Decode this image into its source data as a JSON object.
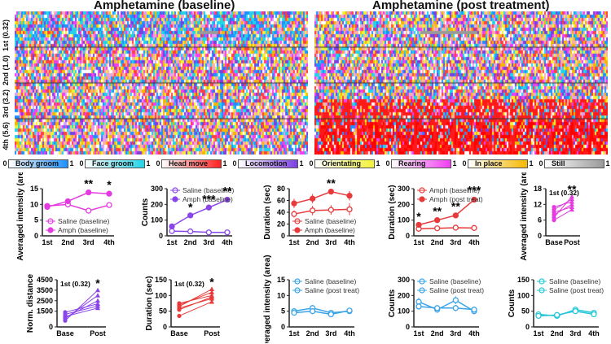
{
  "titles": {
    "left": "Amphetamine (baseline)",
    "right": "Amphetamine (post treatment)"
  },
  "row_labels": [
    "1st (0.32)",
    "2nd (1.0)",
    "3rd (3.2)",
    "4th (5.6)"
  ],
  "legend": {
    "min": "0",
    "max": "1",
    "items": [
      {
        "label": "Body groom",
        "color": "#1e90ff"
      },
      {
        "label": "Face groom",
        "color": "#22d4e8"
      },
      {
        "label": "Head move",
        "color": "#ff2020"
      },
      {
        "label": "Locomotion",
        "color": "#7b3fe0"
      },
      {
        "label": "Orientating",
        "color": "#f2f23a"
      },
      {
        "label": "Rearing",
        "color": "#f03ef0"
      },
      {
        "label": "In place",
        "color": "#f5b800"
      },
      {
        "label": "Still",
        "color": "#9a9a9a"
      }
    ]
  },
  "chart_data": [
    {
      "type": "line",
      "ylabel": "Averaged intensity (area)",
      "categories": [
        "1st",
        "2nd",
        "3rd",
        "4th"
      ],
      "ylim": [
        0,
        15
      ],
      "yticks": [
        "0",
        "5",
        "10",
        "15"
      ],
      "legend": "bottom",
      "color": "#e33be0",
      "series": [
        {
          "name": "Saline (baseline)",
          "values": [
            9.5,
            10,
            8,
            9.8
          ],
          "err": [
            0.4,
            0.4,
            0.4,
            0.4
          ],
          "open": true
        },
        {
          "name": "Amph (baseline)",
          "values": [
            9.2,
            11,
            13.8,
            13.4
          ],
          "err": [
            0.6,
            0.5,
            0.5,
            0.6
          ],
          "open": false
        }
      ],
      "stars": [
        {
          "x": 2,
          "text": "**"
        },
        {
          "x": 3,
          "text": "*"
        }
      ]
    },
    {
      "type": "line",
      "ylabel": "Counts",
      "categories": [
        "1st",
        "2nd",
        "3rd",
        "4th"
      ],
      "ylim": [
        0,
        300
      ],
      "yticks": [
        "0",
        "100",
        "200",
        "300"
      ],
      "legend": "top",
      "color": "#8a45e8",
      "series": [
        {
          "name": "Saline (baseline)",
          "values": [
            30,
            28,
            22,
            22
          ],
          "err": [
            3,
            3,
            3,
            3
          ],
          "open": true
        },
        {
          "name": "Amph (baseline)",
          "values": [
            60,
            130,
            180,
            230
          ],
          "err": [
            6,
            8,
            8,
            10
          ],
          "open": false
        }
      ],
      "stars": [
        {
          "x": 1,
          "text": "*"
        },
        {
          "x": 2,
          "text": "***"
        },
        {
          "x": 3,
          "text": "**"
        }
      ]
    },
    {
      "type": "line",
      "ylabel": "Duration (sec)",
      "categories": [
        "1st",
        "2nd",
        "3rd",
        "4th"
      ],
      "ylim": [
        0,
        80
      ],
      "yticks": [
        "0",
        "20",
        "40",
        "60",
        "80"
      ],
      "legend": "bottom",
      "color": "#e83a3a",
      "series": [
        {
          "name": "Saline (baseline)",
          "values": [
            37,
            43,
            44,
            45
          ],
          "err": [
            6,
            8,
            8,
            10
          ],
          "open": true
        },
        {
          "name": "Amph (baseline)",
          "values": [
            55,
            63,
            75,
            68
          ],
          "err": [
            8,
            8,
            5,
            8
          ],
          "open": false
        }
      ],
      "stars": [
        {
          "x": 2,
          "text": "**"
        }
      ]
    },
    {
      "type": "line",
      "ylabel": "Duration (sec)",
      "categories": [
        "1st",
        "2nd",
        "3rd",
        "4th"
      ],
      "ylim": [
        0,
        300
      ],
      "yticks": [
        "0",
        "100",
        "200",
        "300"
      ],
      "legend": "top",
      "color": "#e83a3a",
      "series": [
        {
          "name": "Amph (baseline)",
          "values": [
            45,
            48,
            52,
            50
          ],
          "err": [
            4,
            4,
            4,
            4
          ],
          "open": true
        },
        {
          "name": "Amph (post treat)",
          "values": [
            70,
            100,
            130,
            230
          ],
          "err": [
            8,
            10,
            12,
            15
          ],
          "open": false
        }
      ],
      "stars": [
        {
          "x": 0,
          "text": "*"
        },
        {
          "x": 1,
          "text": "**"
        },
        {
          "x": 2,
          "text": "**"
        },
        {
          "x": 3,
          "text": "***"
        }
      ]
    },
    {
      "type": "scatter",
      "ylabel": "Averaged intensity (area)",
      "categories": [
        "Base",
        "Post"
      ],
      "ylim": [
        0,
        18
      ],
      "yticks": [
        "0",
        "6",
        "12",
        "18"
      ],
      "label": "1st (0.32)",
      "color": "#e33be0",
      "pairs": [
        [
          6,
          10
        ],
        [
          8,
          12
        ],
        [
          10,
          14
        ],
        [
          11,
          13
        ],
        [
          7,
          15
        ],
        [
          9,
          11
        ]
      ],
      "stars": [
        {
          "x": 1,
          "text": "**"
        }
      ]
    },
    {
      "type": "scatter",
      "ylabel": "Norm. distance",
      "categories": [
        "Base",
        "Post"
      ],
      "ylim": [
        0,
        4500
      ],
      "yticks": [
        "0",
        "1500",
        "2500",
        "3500",
        "4500"
      ],
      "label": "1st (0.32)",
      "color": "#8a45e8",
      "pairs": [
        [
          900,
          2500
        ],
        [
          1200,
          2000
        ],
        [
          600,
          3500
        ],
        [
          1000,
          1800
        ],
        [
          1400,
          2200
        ],
        [
          800,
          3000
        ]
      ],
      "stars": [
        {
          "x": 1,
          "text": "*"
        }
      ]
    },
    {
      "type": "scatter",
      "ylabel": "Duration (sec)",
      "categories": [
        "Base",
        "Post"
      ],
      "ylim": [
        0,
        150
      ],
      "yticks": [
        "0",
        "50",
        "100",
        "150"
      ],
      "label": "1st (0.32)",
      "color": "#e83a3a",
      "pairs": [
        [
          60,
          90
        ],
        [
          70,
          110
        ],
        [
          35,
          80
        ],
        [
          75,
          100
        ],
        [
          65,
          120
        ],
        [
          55,
          95
        ]
      ],
      "stars": [
        {
          "x": 1,
          "text": "*"
        }
      ]
    },
    {
      "type": "line",
      "ylabel": "Averaged intensity (area)",
      "categories": [
        "1st",
        "2nd",
        "3rd",
        "4th"
      ],
      "ylim": [
        0,
        15
      ],
      "yticks": [
        "0",
        "5",
        "10",
        "15"
      ],
      "legend": "top",
      "color": "#3aa4e8",
      "series": [
        {
          "name": "Saline (baseline)",
          "values": [
            5,
            6,
            4.5,
            5
          ],
          "err": [
            1,
            1,
            0.6,
            0.8
          ],
          "open": true
        },
        {
          "name": "Saline (post treat)",
          "values": [
            4.5,
            5,
            4,
            5.2
          ],
          "err": [
            0.8,
            0.8,
            0.6,
            0.6
          ],
          "open": true
        }
      ],
      "stars": []
    },
    {
      "type": "line",
      "ylabel": "Counts",
      "categories": [
        "1st",
        "2nd",
        "3rd",
        "4th"
      ],
      "ylim": [
        0,
        300
      ],
      "yticks": [
        "0",
        "100",
        "200",
        "300"
      ],
      "legend": "top",
      "color": "#3aa4e8",
      "series": [
        {
          "name": "Saline (baseline)",
          "values": [
            160,
            110,
            170,
            100
          ],
          "err": [
            25,
            20,
            25,
            20
          ],
          "open": true
        },
        {
          "name": "Saline (post treat)",
          "values": [
            130,
            120,
            120,
            110
          ],
          "err": [
            20,
            15,
            20,
            20
          ],
          "open": true
        }
      ],
      "stars": []
    },
    {
      "type": "line",
      "ylabel": "Counts",
      "categories": [
        "1st",
        "2nd",
        "3rd",
        "4th"
      ],
      "ylim": [
        0,
        150
      ],
      "yticks": [
        "0",
        "50",
        "100",
        "150"
      ],
      "legend": "top",
      "color": "#28c8d8",
      "series": [
        {
          "name": "Saline (baseline)",
          "values": [
            40,
            35,
            55,
            45
          ],
          "err": [
            8,
            6,
            10,
            8
          ],
          "open": true
        },
        {
          "name": "Saline (post treat)",
          "values": [
            35,
            38,
            50,
            40
          ],
          "err": [
            6,
            6,
            8,
            6
          ],
          "open": true
        }
      ],
      "stars": []
    }
  ]
}
